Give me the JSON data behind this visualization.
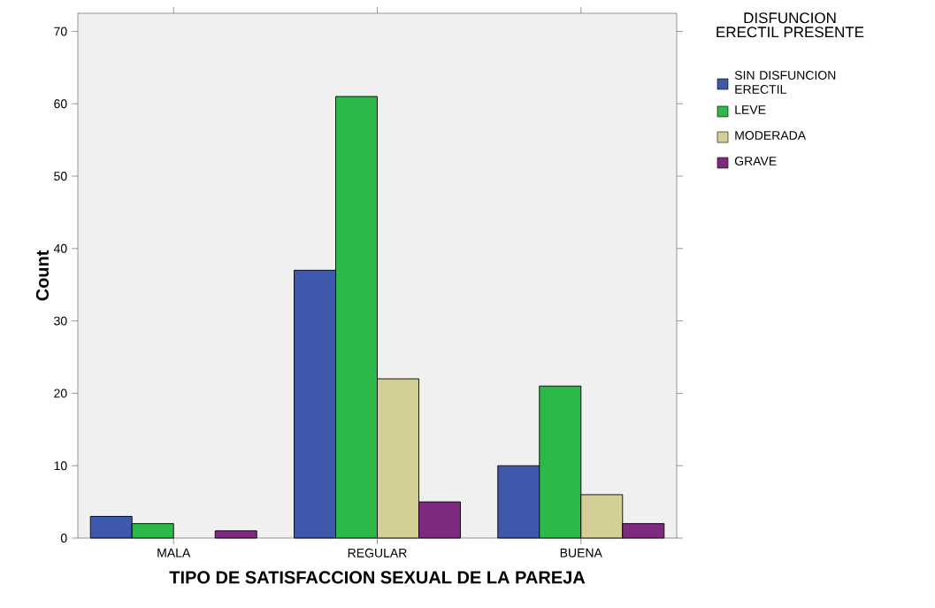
{
  "chart_data": {
    "type": "bar",
    "xlabel": "TIPO DE SATISFACCION SEXUAL DE LA PAREJA",
    "ylabel": "Count",
    "legend_title": "DISFUNCION ERECTIL PRESENTE",
    "categories": [
      "MALA",
      "REGULAR",
      "BUENA"
    ],
    "series": [
      {
        "name": "SIN DISFUNCION ERECTIL",
        "color": "#3e58ac",
        "values": [
          3,
          37,
          10
        ]
      },
      {
        "name": "LEVE",
        "color": "#2db84a",
        "values": [
          2,
          61,
          21
        ]
      },
      {
        "name": "MODERADA",
        "color": "#d4cf97",
        "values": [
          null,
          22,
          6
        ]
      },
      {
        "name": "GRAVE",
        "color": "#7e2a7e",
        "values": [
          1,
          5,
          2
        ]
      }
    ],
    "ylim": [
      0,
      72.5
    ],
    "yticks": [
      0,
      10,
      20,
      30,
      40,
      50,
      60,
      70
    ],
    "grid": false,
    "legend": "right"
  }
}
